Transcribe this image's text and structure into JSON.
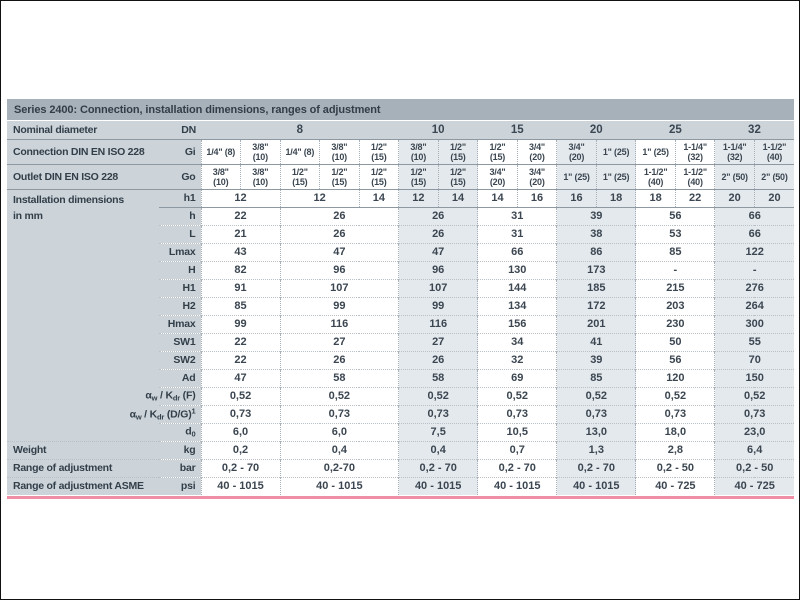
{
  "colors": {
    "accent_line": "#ef8ea5",
    "title_bar_bg": "#a7b1ba",
    "panel_bg": "#ccd4da",
    "shaded_column_bg": "#e4e9ed",
    "text": "#3b4651"
  },
  "table": {
    "title": "Series 2400: Connection, installation dimensions, ranges of adjustment",
    "rows": [
      {
        "id": "dn",
        "kind": "dn",
        "label": "Nominal diameter",
        "rowspan": 1,
        "unit": "DN",
        "cells": [
          [
            "8",
            5
          ],
          [
            "10",
            2
          ],
          [
            "15",
            2
          ],
          [
            "20",
            2
          ],
          [
            "25",
            2
          ],
          [
            "32",
            2
          ]
        ]
      },
      {
        "id": "gi",
        "kind": "conn",
        "label": "Connection DIN EN ISO 228",
        "rowspan": 1,
        "unit": "Gi",
        "cells": [
          [
            "1/4\" (8)",
            1
          ],
          [
            "3/8\"|(10)",
            1
          ],
          [
            "1/4\" (8)",
            1
          ],
          [
            "3/8\"|(10)",
            1
          ],
          [
            "1/2\"|(15)",
            1
          ],
          [
            "3/8\"|(10)",
            1
          ],
          [
            "1/2\"|(15)",
            1
          ],
          [
            "1/2\"|(15)",
            1
          ],
          [
            "3/4\"|(20)",
            1
          ],
          [
            "3/4\"|(20)",
            1
          ],
          [
            "1\" (25)",
            1
          ],
          [
            "1\" (25)",
            1
          ],
          [
            "1-1/4\"|(32)",
            1
          ],
          [
            "1-1/4\"|(32)",
            1
          ],
          [
            "1-1/2\"|(40)",
            1
          ]
        ]
      },
      {
        "id": "go",
        "kind": "conn",
        "label": "Outlet DIN EN ISO 228",
        "rowspan": 1,
        "unit": "Go",
        "cells": [
          [
            "3/8\"|(10)",
            1
          ],
          [
            "3/8\"|(10)",
            1
          ],
          [
            "1/2\"|(15)",
            1
          ],
          [
            "1/2\"|(15)",
            1
          ],
          [
            "1/2\"|(15)",
            1
          ],
          [
            "1/2\"|(15)",
            1
          ],
          [
            "1/2\"|(15)",
            1
          ],
          [
            "3/4\"|(20)",
            1
          ],
          [
            "3/4\"|(20)",
            1
          ],
          [
            "1\" (25)",
            1
          ],
          [
            "1\" (25)",
            1
          ],
          [
            "1-1/2\"|(40)",
            1
          ],
          [
            "1-1/2\"|(40)",
            1
          ],
          [
            "2\" (50)",
            1
          ],
          [
            "2\" (50)",
            1
          ]
        ]
      },
      {
        "id": "h1",
        "kind": "dim",
        "label": "Installation dimensions|in mm",
        "rowspan": 14,
        "unit": "h1",
        "cells": [
          [
            "12",
            2
          ],
          [
            "12",
            2
          ],
          [
            "14",
            1
          ],
          [
            "12",
            1
          ],
          [
            "14",
            1
          ],
          [
            "14",
            1
          ],
          [
            "16",
            1
          ],
          [
            "16",
            1
          ],
          [
            "18",
            1
          ],
          [
            "18",
            1
          ],
          [
            "22",
            1
          ],
          [
            "20",
            1
          ],
          [
            "20",
            1
          ]
        ]
      },
      {
        "id": "h",
        "kind": "dim",
        "unit": "h",
        "cells": [
          [
            "22",
            2
          ],
          [
            "26",
            3
          ],
          [
            "26",
            2
          ],
          [
            "31",
            2
          ],
          [
            "39",
            2
          ],
          [
            "56",
            2
          ],
          [
            "66",
            2
          ]
        ]
      },
      {
        "id": "L",
        "kind": "dim",
        "unit": "L",
        "cells": [
          [
            "21",
            2
          ],
          [
            "26",
            3
          ],
          [
            "26",
            2
          ],
          [
            "31",
            2
          ],
          [
            "38",
            2
          ],
          [
            "53",
            2
          ],
          [
            "66",
            2
          ]
        ]
      },
      {
        "id": "Lmax",
        "kind": "dim",
        "unit": "Lmax",
        "cells": [
          [
            "43",
            2
          ],
          [
            "47",
            3
          ],
          [
            "47",
            2
          ],
          [
            "66",
            2
          ],
          [
            "86",
            2
          ],
          [
            "85",
            2
          ],
          [
            "122",
            2
          ]
        ]
      },
      {
        "id": "H",
        "kind": "dim",
        "unit": "H",
        "cells": [
          [
            "82",
            2
          ],
          [
            "96",
            3
          ],
          [
            "96",
            2
          ],
          [
            "130",
            2
          ],
          [
            "173",
            2
          ],
          [
            "-",
            2
          ],
          [
            "-",
            2
          ]
        ]
      },
      {
        "id": "H1",
        "kind": "dim",
        "unit": "H1",
        "cells": [
          [
            "91",
            2
          ],
          [
            "107",
            3
          ],
          [
            "107",
            2
          ],
          [
            "144",
            2
          ],
          [
            "185",
            2
          ],
          [
            "215",
            2
          ],
          [
            "276",
            2
          ]
        ]
      },
      {
        "id": "H2",
        "kind": "dim",
        "unit": "H2",
        "cells": [
          [
            "85",
            2
          ],
          [
            "99",
            3
          ],
          [
            "99",
            2
          ],
          [
            "134",
            2
          ],
          [
            "172",
            2
          ],
          [
            "203",
            2
          ],
          [
            "264",
            2
          ]
        ]
      },
      {
        "id": "Hmax",
        "kind": "dim",
        "unit": "Hmax",
        "cells": [
          [
            "99",
            2
          ],
          [
            "116",
            3
          ],
          [
            "116",
            2
          ],
          [
            "156",
            2
          ],
          [
            "201",
            2
          ],
          [
            "230",
            2
          ],
          [
            "300",
            2
          ]
        ]
      },
      {
        "id": "SW1",
        "kind": "dim",
        "unit": "SW1",
        "cells": [
          [
            "22",
            2
          ],
          [
            "27",
            3
          ],
          [
            "27",
            2
          ],
          [
            "34",
            2
          ],
          [
            "41",
            2
          ],
          [
            "50",
            2
          ],
          [
            "55",
            2
          ]
        ]
      },
      {
        "id": "SW2",
        "kind": "dim",
        "unit": "SW2",
        "cells": [
          [
            "22",
            2
          ],
          [
            "26",
            3
          ],
          [
            "26",
            2
          ],
          [
            "32",
            2
          ],
          [
            "39",
            2
          ],
          [
            "56",
            2
          ],
          [
            "70",
            2
          ]
        ]
      },
      {
        "id": "Ad",
        "kind": "dim",
        "unit": "Ad",
        "cells": [
          [
            "47",
            2
          ],
          [
            "58",
            3
          ],
          [
            "58",
            2
          ],
          [
            "69",
            2
          ],
          [
            "85",
            2
          ],
          [
            "120",
            2
          ],
          [
            "150",
            2
          ]
        ]
      },
      {
        "id": "alphaF",
        "kind": "dim",
        "unit": "α~w~ / K~dr~ (F)",
        "cells": [
          [
            "0,52",
            2
          ],
          [
            "0,52",
            3
          ],
          [
            "0,52",
            2
          ],
          [
            "0,52",
            2
          ],
          [
            "0,52",
            2
          ],
          [
            "0,52",
            2
          ],
          [
            "0,52",
            2
          ]
        ]
      },
      {
        "id": "alphaDG",
        "kind": "dim",
        "unit": "α~w~ / K~dr~ (D/G)^1^",
        "cells": [
          [
            "0,73",
            2
          ],
          [
            "0,73",
            3
          ],
          [
            "0,73",
            2
          ],
          [
            "0,73",
            2
          ],
          [
            "0,73",
            2
          ],
          [
            "0,73",
            2
          ],
          [
            "0,73",
            2
          ]
        ]
      },
      {
        "id": "d0",
        "kind": "dim",
        "unit": "d~0~",
        "cells": [
          [
            "6,0",
            2
          ],
          [
            "6,0",
            3
          ],
          [
            "7,5",
            2
          ],
          [
            "10,5",
            2
          ],
          [
            "13,0",
            2
          ],
          [
            "18,0",
            2
          ],
          [
            "23,0",
            2
          ]
        ]
      },
      {
        "id": "weight",
        "kind": "misc",
        "label": "Weight",
        "rowspan": 1,
        "unit": "kg",
        "cells": [
          [
            "0,2",
            2
          ],
          [
            "0,4",
            3
          ],
          [
            "0,4",
            2
          ],
          [
            "0,7",
            2
          ],
          [
            "1,3",
            2
          ],
          [
            "2,8",
            2
          ],
          [
            "6,4",
            2
          ]
        ]
      },
      {
        "id": "range_bar",
        "kind": "misc",
        "label": "Range of adjustment",
        "rowspan": 1,
        "unit": "bar",
        "cells": [
          [
            "0,2 - 70",
            2
          ],
          [
            "0,2-70",
            3
          ],
          [
            "0,2 - 70",
            2
          ],
          [
            "0,2 - 70",
            2
          ],
          [
            "0,2 - 70",
            2
          ],
          [
            "0,2 - 50",
            2
          ],
          [
            "0,2 - 50",
            2
          ]
        ]
      },
      {
        "id": "range_psi",
        "kind": "misc",
        "label": "Range of adjustment ASME",
        "rowspan": 1,
        "unit": "psi",
        "cells": [
          [
            "40 - 1015",
            2
          ],
          [
            "40 - 1015",
            3
          ],
          [
            "40 - 1015",
            2
          ],
          [
            "40 - 1015",
            2
          ],
          [
            "40 - 1015",
            2
          ],
          [
            "40 - 725",
            2
          ],
          [
            "40 - 725",
            2
          ]
        ]
      }
    ]
  }
}
